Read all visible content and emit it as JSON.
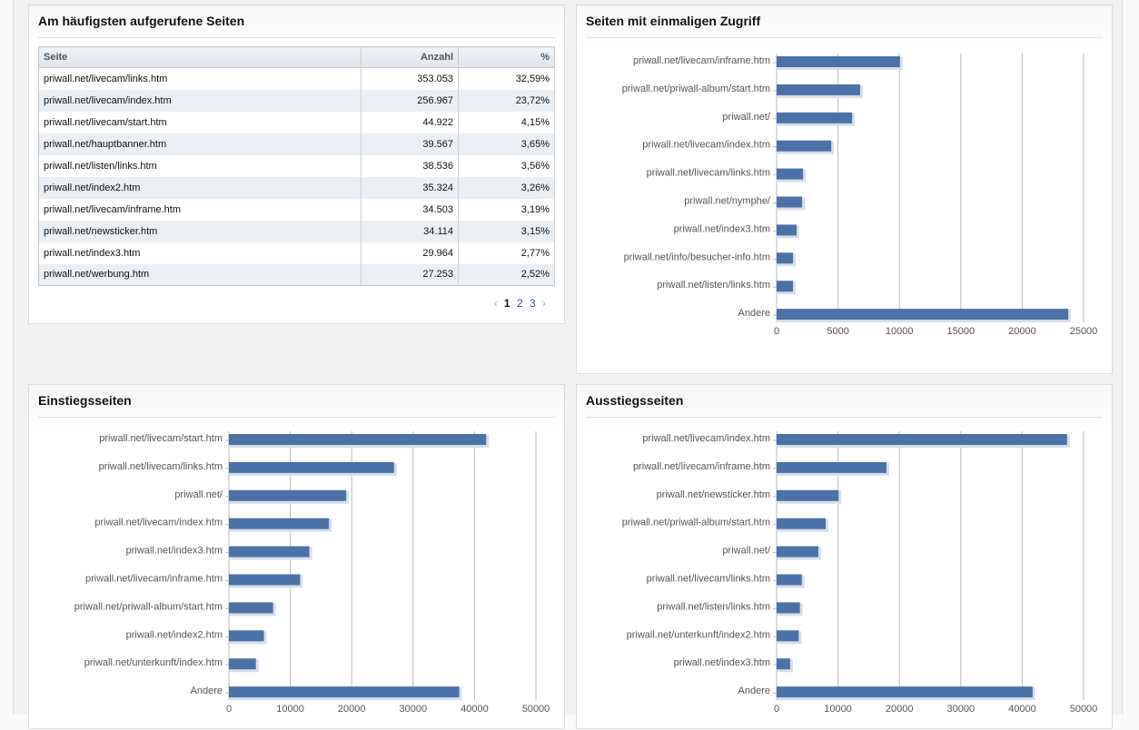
{
  "top_pages": {
    "title": "Am häufigsten aufgerufene Seiten",
    "columns": [
      "Seite",
      "Anzahl",
      "%"
    ],
    "rows": [
      [
        "priwall.net/livecam/links.htm",
        "353.053",
        "32,59%"
      ],
      [
        "priwall.net/livecam/index.htm",
        "256.967",
        "23,72%"
      ],
      [
        "priwall.net/livecam/start.htm",
        "44.922",
        "4,15%"
      ],
      [
        "priwall.net/hauptbanner.htm",
        "39.567",
        "3,65%"
      ],
      [
        "priwall.net/listen/links.htm",
        "38.536",
        "3,56%"
      ],
      [
        "priwall.net/index2.htm",
        "35.324",
        "3,26%"
      ],
      [
        "priwall.net/livecam/inframe.htm",
        "34.503",
        "3,19%"
      ],
      [
        "priwall.net/newsticker.htm",
        "34.114",
        "3,15%"
      ],
      [
        "priwall.net/index3.htm",
        "29.964",
        "2,77%"
      ],
      [
        "priwall.net/werbung.htm",
        "27.253",
        "2,52%"
      ]
    ],
    "pagination": {
      "prev": "‹",
      "pages": [
        "1",
        "2",
        "3"
      ],
      "current": "1",
      "next": "›"
    }
  },
  "bar_color": "#4a72a8",
  "chart_data": [
    {
      "id": "unique",
      "type": "bar",
      "orientation": "horizontal",
      "title": "Seiten mit einmaligen Zugriff",
      "categories": [
        "priwall.net/livecam/inframe.htm",
        "priwall.net/priwall-album/start.htm",
        "priwall.net/",
        "priwall.net/livecam/index.htm",
        "priwall.net/livecam/links.htm",
        "priwall.net/nymphe/",
        "priwall.net/index3.htm",
        "priwall.net/info/besucher-info.htm",
        "priwall.net/listen/links.htm",
        "Andere"
      ],
      "values": [
        10050,
        6800,
        6150,
        4450,
        2150,
        2080,
        1630,
        1340,
        1330,
        23750
      ],
      "xlim": [
        0,
        25000
      ],
      "ticks": [
        "0",
        "5000",
        "10000",
        "15000",
        "20000",
        "25000"
      ],
      "grid": true
    },
    {
      "id": "entry",
      "type": "bar",
      "orientation": "horizontal",
      "title": "Einstiegsseiten",
      "categories": [
        "priwall.net/livecam/start.htm",
        "priwall.net/livecam/links.htm",
        "priwall.net/",
        "priwall.net/livecam/index.htm",
        "priwall.net/index3.htm",
        "priwall.net/livecam/inframe.htm",
        "priwall.net/priwall-album/start.htm",
        "priwall.net/index2.htm",
        "priwall.net/unterkunft/index.htm",
        "Andere"
      ],
      "values": [
        41900,
        26900,
        19100,
        16300,
        13100,
        11600,
        7200,
        5700,
        4400,
        37500
      ],
      "xlim": [
        0,
        50000
      ],
      "ticks": [
        "0",
        "10000",
        "20000",
        "30000",
        "40000",
        "50000"
      ],
      "grid": true
    },
    {
      "id": "exit",
      "type": "bar",
      "orientation": "horizontal",
      "title": "Ausstiegsseiten",
      "categories": [
        "priwall.net/livecam/index.htm",
        "priwall.net/livecam/inframe.htm",
        "priwall.net/newsticker.htm",
        "priwall.net/priwall-album/start.htm",
        "priwall.net/",
        "priwall.net/livecam/links.htm",
        "priwall.net/listen/links.htm",
        "priwall.net/unterkunft/index2.htm",
        "priwall.net/index3.htm",
        "Andere"
      ],
      "values": [
        47300,
        17900,
        10100,
        8000,
        6800,
        4100,
        3800,
        3600,
        2200,
        41700
      ],
      "xlim": [
        0,
        50000
      ],
      "ticks": [
        "0",
        "10000",
        "20000",
        "30000",
        "40000",
        "50000"
      ],
      "grid": true
    }
  ]
}
